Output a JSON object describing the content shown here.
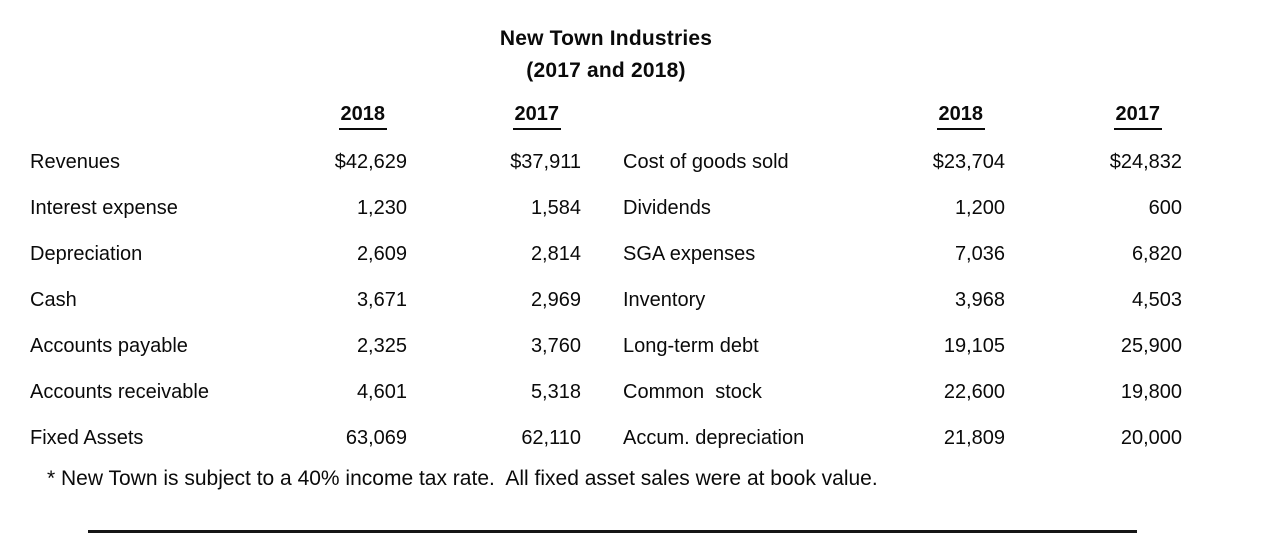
{
  "title": {
    "line1": "New Town Industries",
    "line2": "(2017 and 2018)"
  },
  "left_table": {
    "headers": {
      "col2018": "2018",
      "col2017": "2017"
    },
    "rows": [
      {
        "label": "Revenues",
        "y2018": "$42,629",
        "y2017": "$37,911"
      },
      {
        "label": "Interest expense",
        "y2018": "1,230",
        "y2017": "1,584"
      },
      {
        "label": "Depreciation",
        "y2018": "2,609",
        "y2017": "2,814"
      },
      {
        "label": "Cash",
        "y2018": "3,671",
        "y2017": "2,969"
      },
      {
        "label": "Accounts payable",
        "y2018": "2,325",
        "y2017": "3,760"
      },
      {
        "label": "Accounts receivable",
        "y2018": "4,601",
        "y2017": "5,318"
      },
      {
        "label": "Fixed Assets",
        "y2018": "63,069",
        "y2017": "62,110"
      }
    ]
  },
  "right_table": {
    "headers": {
      "col2018": "2018",
      "col2017": "2017"
    },
    "rows": [
      {
        "label": "Cost of goods sold",
        "y2018": "$23,704",
        "y2017": "$24,832"
      },
      {
        "label": "Dividends",
        "y2018": "1,200",
        "y2017": "600"
      },
      {
        "label": "SGA expenses",
        "y2018": "7,036",
        "y2017": "6,820"
      },
      {
        "label": "Inventory",
        "y2018": "3,968",
        "y2017": "4,503"
      },
      {
        "label": "Long-term debt",
        "y2018": "19,105",
        "y2017": "25,900"
      },
      {
        "label": "Common  stock",
        "y2018": "22,600",
        "y2017": "19,800"
      },
      {
        "label": "Accum. depreciation",
        "y2018": "21,809",
        "y2017": "20,000"
      }
    ]
  },
  "footnote": "* New Town is subject to a 40% income tax rate.  All fixed asset sales were at book value.",
  "colors": {
    "background": "#ffffff",
    "text": "#0a0a0a"
  },
  "chart_data": {
    "type": "table",
    "title": "New Town Industries (2017 and 2018)",
    "columns": [
      "Item",
      "2018",
      "2017"
    ],
    "rows": [
      [
        "Revenues",
        42629,
        37911
      ],
      [
        "Interest expense",
        1230,
        1584
      ],
      [
        "Depreciation",
        2609,
        2814
      ],
      [
        "Cash",
        3671,
        2969
      ],
      [
        "Accounts payable",
        2325,
        3760
      ],
      [
        "Accounts receivable",
        4601,
        5318
      ],
      [
        "Fixed Assets",
        63069,
        62110
      ],
      [
        "Cost of goods sold",
        23704,
        24832
      ],
      [
        "Dividends",
        1200,
        600
      ],
      [
        "SGA expenses",
        7036,
        6820
      ],
      [
        "Inventory",
        3968,
        4503
      ],
      [
        "Long-term debt",
        19105,
        25900
      ],
      [
        "Common stock",
        22600,
        19800
      ],
      [
        "Accum. depreciation",
        21809,
        20000
      ]
    ]
  }
}
